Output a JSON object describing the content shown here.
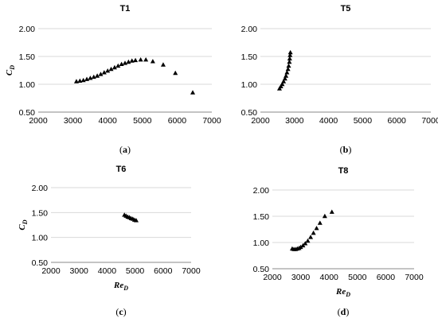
{
  "chart_data": [
    {
      "type": "scatter",
      "title": "T1",
      "ylabel": "C",
      "ylabel_sub": "D",
      "xlabel": "",
      "xlabel_sub": "",
      "caption_letter": "a",
      "xlim": [
        2000,
        7000
      ],
      "ylim": [
        0.5,
        2.0
      ],
      "xticks": [
        "2000",
        "3000",
        "4000",
        "5000",
        "6000",
        "7000"
      ],
      "yticks": [
        "0.50",
        "1.00",
        "1.50",
        "2.00"
      ],
      "grid": "horizontal",
      "marker": "triangle",
      "x": [
        3100,
        3200,
        3300,
        3400,
        3500,
        3600,
        3700,
        3800,
        3900,
        4000,
        4100,
        4200,
        4300,
        4400,
        4500,
        4600,
        4700,
        4800,
        4950,
        5100,
        5300,
        5600,
        5950,
        6450
      ],
      "y": [
        1.05,
        1.06,
        1.07,
        1.09,
        1.11,
        1.13,
        1.15,
        1.18,
        1.21,
        1.24,
        1.27,
        1.3,
        1.33,
        1.36,
        1.38,
        1.4,
        1.42,
        1.43,
        1.44,
        1.44,
        1.41,
        1.35,
        1.2,
        0.85
      ]
    },
    {
      "type": "scatter",
      "title": "T5",
      "ylabel": "",
      "ylabel_sub": "",
      "xlabel": "",
      "xlabel_sub": "",
      "caption_letter": "b",
      "xlim": [
        2000,
        7000
      ],
      "ylim": [
        0.5,
        2.0
      ],
      "xticks": [
        "2000",
        "3000",
        "4000",
        "5000",
        "6000",
        "7000"
      ],
      "yticks": [
        "0.50",
        "1.00",
        "1.50",
        "2.00"
      ],
      "grid": "horizontal",
      "marker": "triangle",
      "x": [
        2560,
        2600,
        2640,
        2680,
        2720,
        2750,
        2780,
        2810,
        2830,
        2850,
        2860,
        2870,
        2880
      ],
      "y": [
        0.92,
        0.96,
        1.0,
        1.05,
        1.1,
        1.15,
        1.21,
        1.27,
        1.33,
        1.4,
        1.46,
        1.52,
        1.57
      ]
    },
    {
      "type": "scatter",
      "title": "T6",
      "ylabel": "C",
      "ylabel_sub": "D",
      "xlabel": "Re",
      "xlabel_sub": "D",
      "caption_letter": "c",
      "xlim": [
        2000,
        7000
      ],
      "ylim": [
        0.5,
        2.0
      ],
      "xticks": [
        "2000",
        "3000",
        "4000",
        "5000",
        "6000",
        "7000"
      ],
      "yticks": [
        "0.50",
        "1.00",
        "1.50",
        "2.00"
      ],
      "grid": "horizontal",
      "marker": "triangle",
      "x": [
        4620,
        4680,
        4740,
        4800,
        4860,
        4920,
        4980,
        5040
      ],
      "y": [
        1.45,
        1.43,
        1.41,
        1.4,
        1.38,
        1.37,
        1.35,
        1.34
      ]
    },
    {
      "type": "scatter",
      "title": "T8",
      "ylabel": "",
      "ylabel_sub": "",
      "xlabel": "Re",
      "xlabel_sub": "D",
      "caption_letter": "d",
      "xlim": [
        2000,
        7000
      ],
      "ylim": [
        0.5,
        2.0
      ],
      "xticks": [
        "2000",
        "3000",
        "4000",
        "5000",
        "6000",
        "7000"
      ],
      "yticks": [
        "0.50",
        "1.00",
        "1.50",
        "2.00"
      ],
      "grid": "horizontal",
      "marker": "triangle",
      "x": [
        2700,
        2760,
        2820,
        2880,
        2940,
        3000,
        3080,
        3160,
        3250,
        3350,
        3450,
        3560,
        3680,
        3850,
        4100
      ],
      "y": [
        0.88,
        0.87,
        0.87,
        0.88,
        0.89,
        0.91,
        0.94,
        0.98,
        1.03,
        1.1,
        1.18,
        1.27,
        1.37,
        1.5,
        1.58
      ]
    }
  ]
}
